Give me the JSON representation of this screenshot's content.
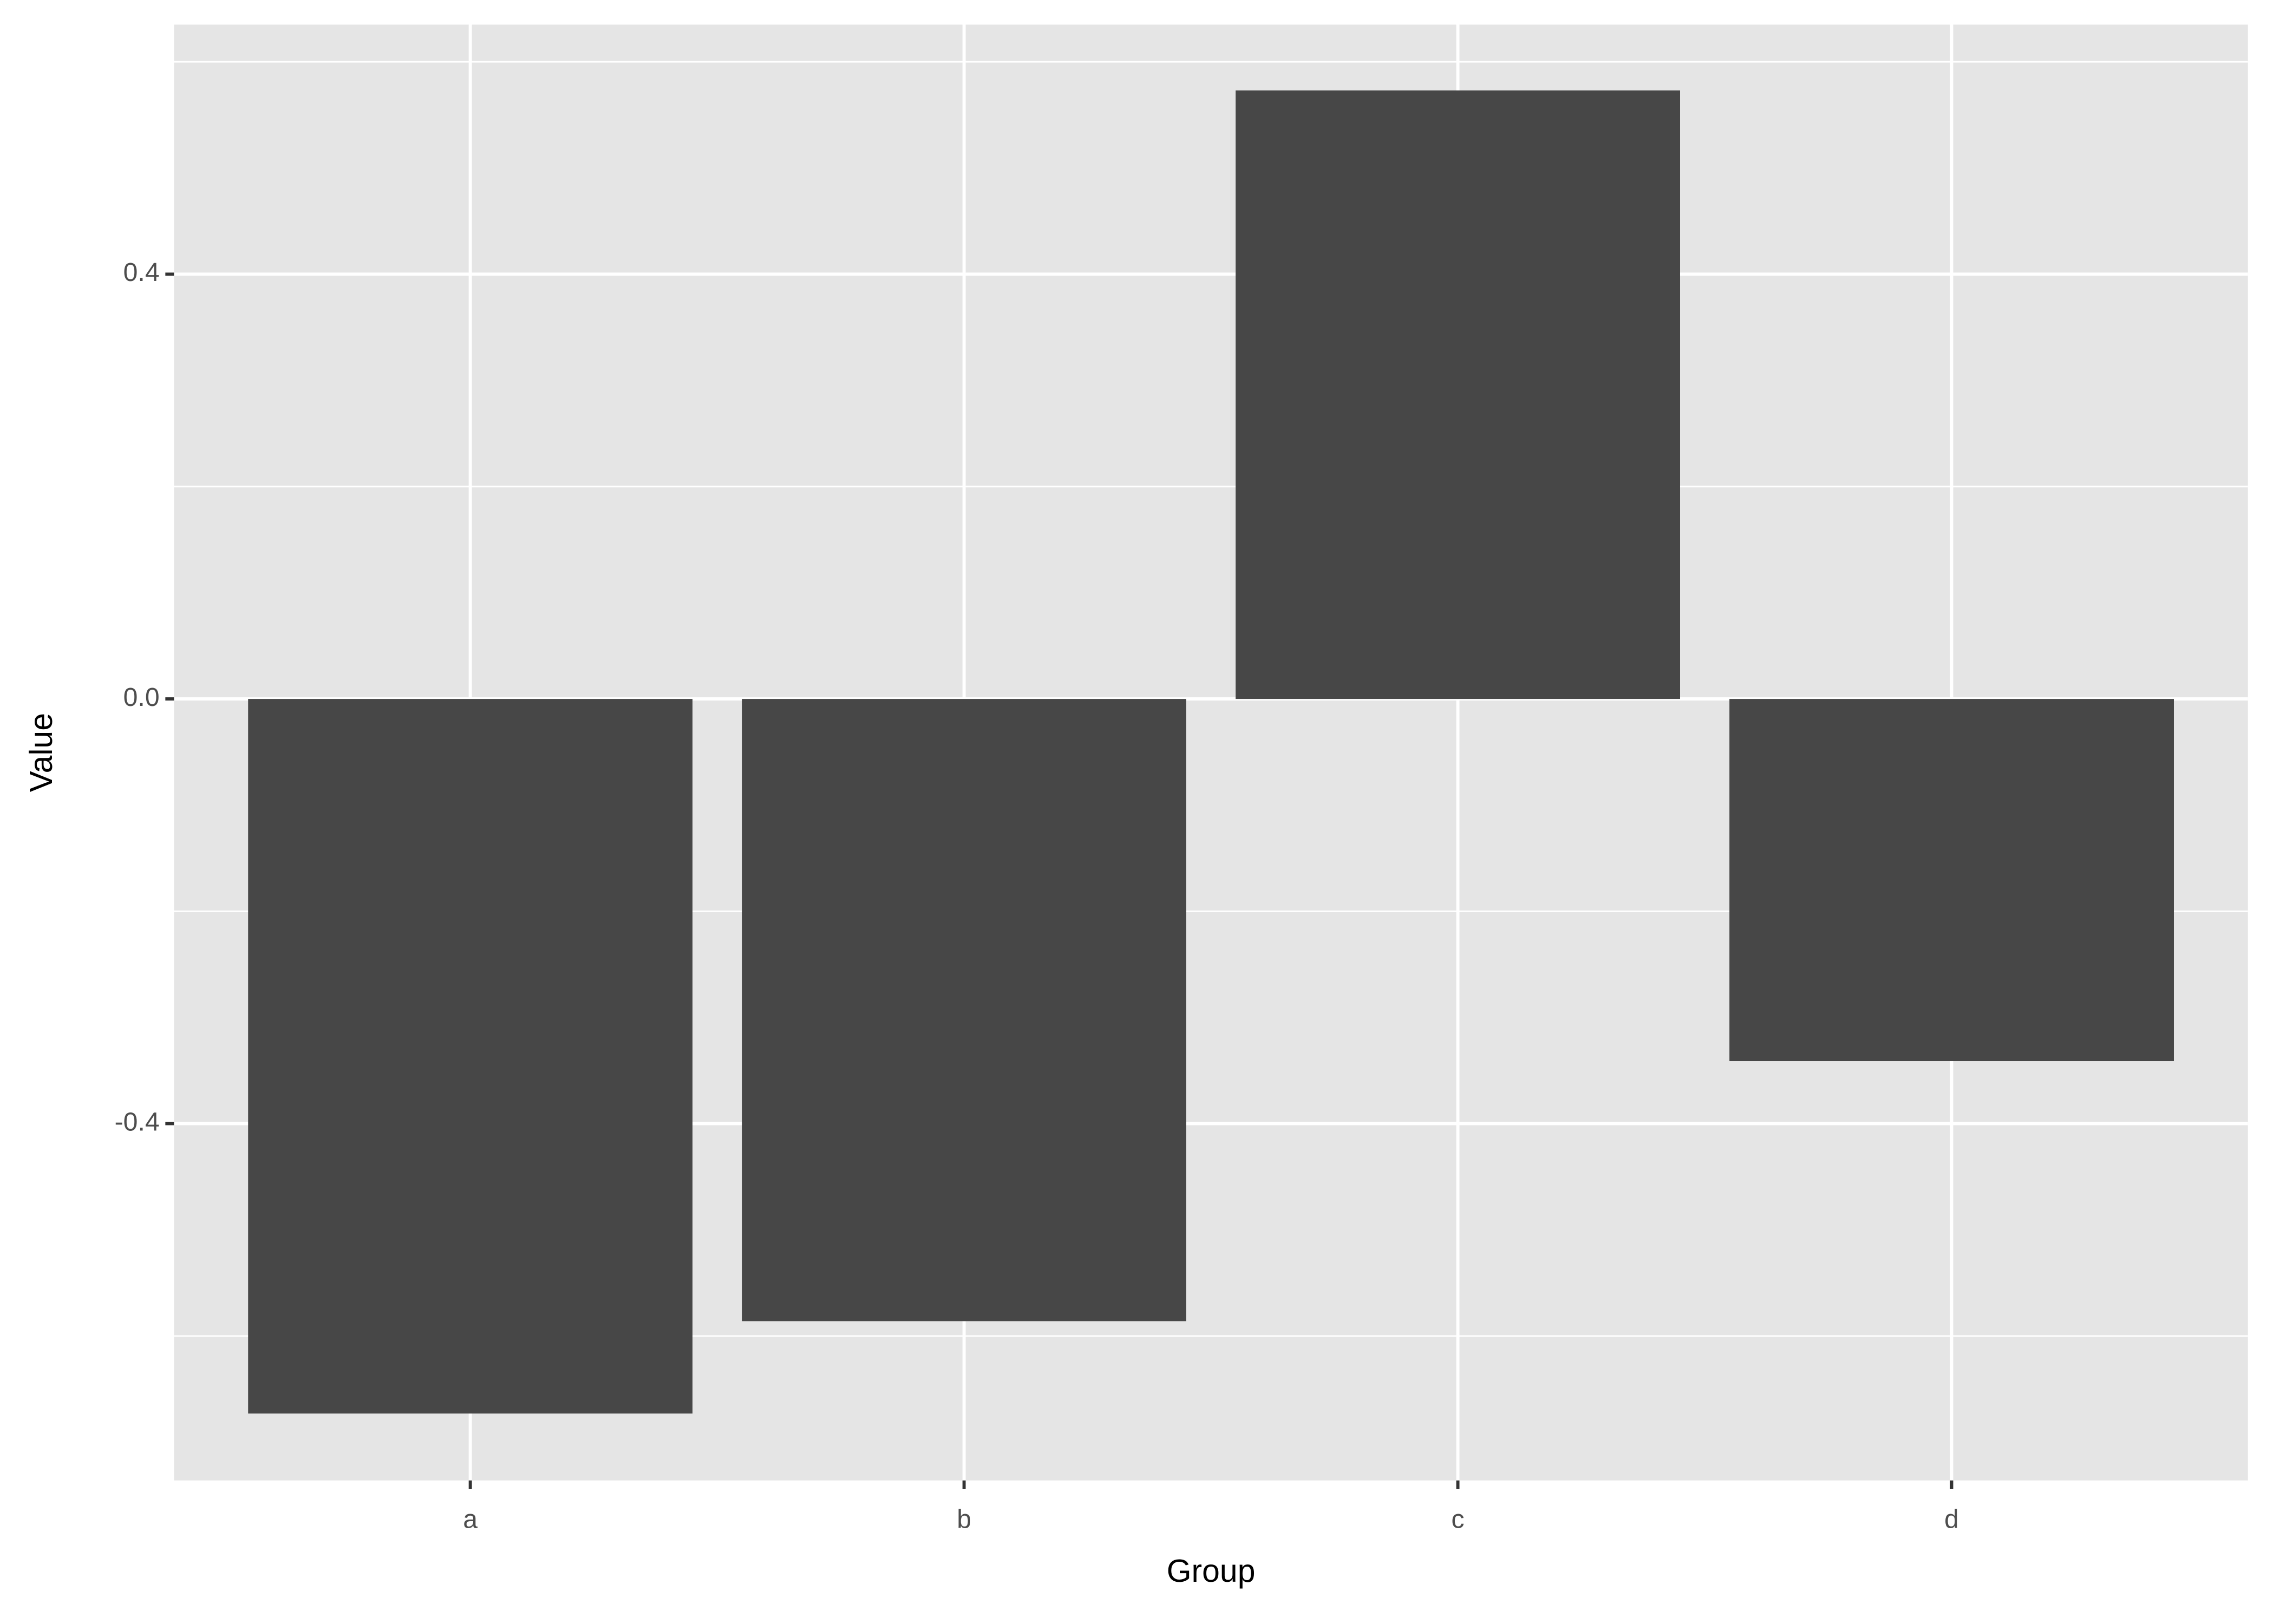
{
  "chart_data": {
    "type": "bar",
    "x_label": "Group",
    "y_label": "Value",
    "categories": [
      "a",
      "b",
      "c",
      "d"
    ],
    "values": [
      -0.673,
      -0.586,
      0.573,
      -0.341
    ],
    "color": "#474747",
    "ylim": [
      -0.736,
      0.635
    ],
    "yticks": [
      -0.4,
      {
        "value": 0,
        "label": "0.0"
      },
      0.4
    ],
    "minor_yticks": [
      -0.6,
      -0.2,
      0.2,
      0.6
    ],
    "grid": true
  }
}
